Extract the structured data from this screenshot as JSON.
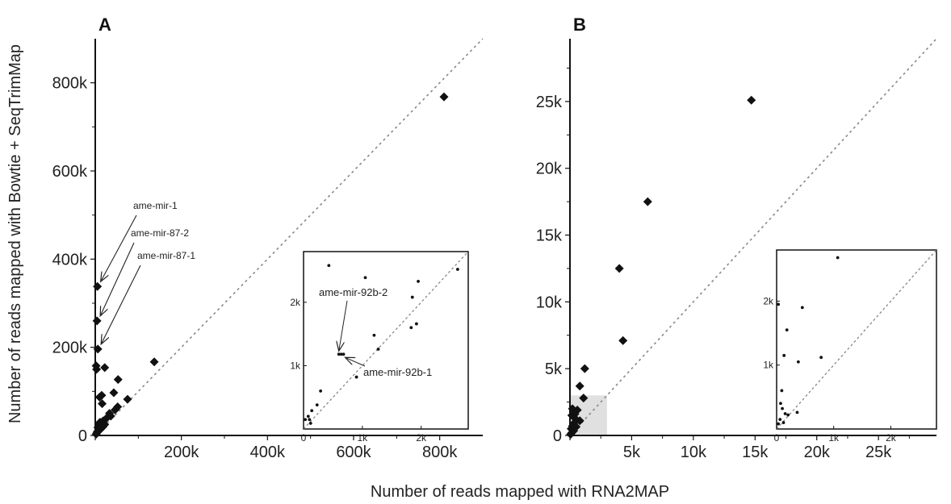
{
  "figure": {
    "xlabel": "Number of reads mapped with RNA2MAP",
    "ylabel": "Number of reads mapped with Bowtie + SeqTrimMap"
  },
  "chart_data": [
    {
      "panel": "A",
      "type": "scatter",
      "marker": "diamond",
      "xlim": [
        0,
        900000
      ],
      "ylim": [
        0,
        900000
      ],
      "x_ticks": [
        0,
        200000,
        400000,
        600000,
        800000
      ],
      "x_tick_labels": [
        "",
        "200k",
        "400k",
        "600k",
        "800k"
      ],
      "y_ticks": [
        0,
        200000,
        400000,
        600000,
        800000
      ],
      "y_tick_labels": [
        "0",
        "200k",
        "400k",
        "600k",
        "800k"
      ],
      "diagonal": "y = x (dotted)",
      "points": [
        {
          "x": 810000,
          "y": 768000
        },
        {
          "x": 5000,
          "y": 338000
        },
        {
          "x": 4000,
          "y": 260000
        },
        {
          "x": 6000,
          "y": 196000
        },
        {
          "x": 137000,
          "y": 167000
        },
        {
          "x": 2000,
          "y": 158000
        },
        {
          "x": 22000,
          "y": 154000
        },
        {
          "x": 3000,
          "y": 150000
        },
        {
          "x": 53000,
          "y": 127000
        },
        {
          "x": 43000,
          "y": 97000
        },
        {
          "x": 15000,
          "y": 91000
        },
        {
          "x": 10000,
          "y": 87000
        },
        {
          "x": 75000,
          "y": 82000
        },
        {
          "x": 16000,
          "y": 72000
        },
        {
          "x": 52000,
          "y": 65000
        },
        {
          "x": 46000,
          "y": 58000
        },
        {
          "x": 33000,
          "y": 50000
        },
        {
          "x": 36000,
          "y": 44000
        },
        {
          "x": 25000,
          "y": 38000
        },
        {
          "x": 18000,
          "y": 33000
        },
        {
          "x": 11000,
          "y": 30000
        },
        {
          "x": 10000,
          "y": 26000
        },
        {
          "x": 22000,
          "y": 25000
        },
        {
          "x": 18000,
          "y": 20000
        },
        {
          "x": 6000,
          "y": 18000
        },
        {
          "x": 13000,
          "y": 15000
        },
        {
          "x": 9000,
          "y": 12000
        },
        {
          "x": 5000,
          "y": 9000
        },
        {
          "x": 4000,
          "y": 6000
        },
        {
          "x": 2000,
          "y": 3000
        }
      ],
      "annotations": [
        {
          "text": "ame-mir-1",
          "x": 5000,
          "y": 338000
        },
        {
          "text": "ame-mir-87-2",
          "x": 4000,
          "y": 260000
        },
        {
          "text": "ame-mir-87-1",
          "x": 6000,
          "y": 196000
        }
      ],
      "inset": {
        "xlim": [
          0,
          2800
        ],
        "ylim": [
          0,
          2800
        ],
        "x_ticks": [
          0,
          1000,
          2000
        ],
        "x_tick_labels": [
          "0",
          "1k",
          "2k"
        ],
        "y_ticks": [
          1000,
          2000
        ],
        "y_tick_labels": [
          "1k",
          "2k"
        ],
        "points": [
          {
            "x": 430,
            "y": 2580
          },
          {
            "x": 1050,
            "y": 2390
          },
          {
            "x": 1950,
            "y": 2330
          },
          {
            "x": 2620,
            "y": 2520
          },
          {
            "x": 1850,
            "y": 2080
          },
          {
            "x": 1200,
            "y": 1480
          },
          {
            "x": 1270,
            "y": 1260
          },
          {
            "x": 1830,
            "y": 1600
          },
          {
            "x": 1920,
            "y": 1660
          },
          {
            "x": 600,
            "y": 1180
          },
          {
            "x": 640,
            "y": 1180
          },
          {
            "x": 680,
            "y": 1180
          },
          {
            "x": 900,
            "y": 820
          },
          {
            "x": 290,
            "y": 600
          },
          {
            "x": 230,
            "y": 380
          },
          {
            "x": 140,
            "y": 290
          },
          {
            "x": 80,
            "y": 200
          },
          {
            "x": 30,
            "y": 150
          },
          {
            "x": 100,
            "y": 150
          },
          {
            "x": 120,
            "y": 90
          }
        ],
        "annotations": [
          {
            "text": "ame-mir-92b-2",
            "x": 600,
            "y": 1180
          },
          {
            "text": "ame-mir-92b-1",
            "x": 680,
            "y": 1180
          }
        ]
      }
    },
    {
      "panel": "B",
      "type": "scatter",
      "marker": "diamond",
      "xlim": [
        0,
        29700
      ],
      "ylim": [
        0,
        29700
      ],
      "x_ticks": [
        0,
        5000,
        10000,
        15000,
        20000,
        25000
      ],
      "x_tick_labels": [
        "",
        "5k",
        "10k",
        "15k",
        "20k",
        "25k"
      ],
      "y_ticks": [
        0,
        5000,
        10000,
        15000,
        20000,
        25000
      ],
      "y_tick_labels": [
        "0",
        "5k",
        "10k",
        "15k",
        "20k",
        "25k"
      ],
      "diagonal": "y = x (dotted)",
      "highlight_region": {
        "x": [
          0,
          3000
        ],
        "y": [
          0,
          3000
        ]
      },
      "points": [
        {
          "x": 14700,
          "y": 25100
        },
        {
          "x": 6300,
          "y": 17500
        },
        {
          "x": 4000,
          "y": 12500
        },
        {
          "x": 4300,
          "y": 7100
        },
        {
          "x": 1200,
          "y": 5000
        },
        {
          "x": 800,
          "y": 3700
        },
        {
          "x": 1100,
          "y": 2800
        },
        {
          "x": 200,
          "y": 2000
        },
        {
          "x": 600,
          "y": 1900
        },
        {
          "x": 400,
          "y": 1600
        },
        {
          "x": 150,
          "y": 1500
        },
        {
          "x": 500,
          "y": 1200
        },
        {
          "x": 800,
          "y": 1100
        },
        {
          "x": 300,
          "y": 900
        },
        {
          "x": 200,
          "y": 700
        },
        {
          "x": 500,
          "y": 650
        },
        {
          "x": 100,
          "y": 500
        },
        {
          "x": 300,
          "y": 350
        },
        {
          "x": 150,
          "y": 200
        },
        {
          "x": 50,
          "y": 80
        }
      ],
      "inset": {
        "xlim": [
          0,
          2800
        ],
        "ylim": [
          0,
          2800
        ],
        "x_ticks": [
          0,
          1000,
          2000
        ],
        "x_tick_labels": [
          "0",
          "1k",
          "2k"
        ],
        "y_ticks": [
          1000,
          2000
        ],
        "y_tick_labels": [
          "1k",
          "2k"
        ],
        "points": [
          {
            "x": 1070,
            "y": 2680
          },
          {
            "x": 30,
            "y": 1950
          },
          {
            "x": 450,
            "y": 1900
          },
          {
            "x": 180,
            "y": 1550
          },
          {
            "x": 130,
            "y": 1150
          },
          {
            "x": 380,
            "y": 1050
          },
          {
            "x": 780,
            "y": 1120
          },
          {
            "x": 90,
            "y": 600
          },
          {
            "x": 70,
            "y": 400
          },
          {
            "x": 100,
            "y": 320
          },
          {
            "x": 150,
            "y": 240
          },
          {
            "x": 200,
            "y": 220
          },
          {
            "x": 360,
            "y": 260
          },
          {
            "x": 60,
            "y": 150
          },
          {
            "x": 120,
            "y": 100
          },
          {
            "x": 30,
            "y": 80
          }
        ]
      }
    }
  ]
}
